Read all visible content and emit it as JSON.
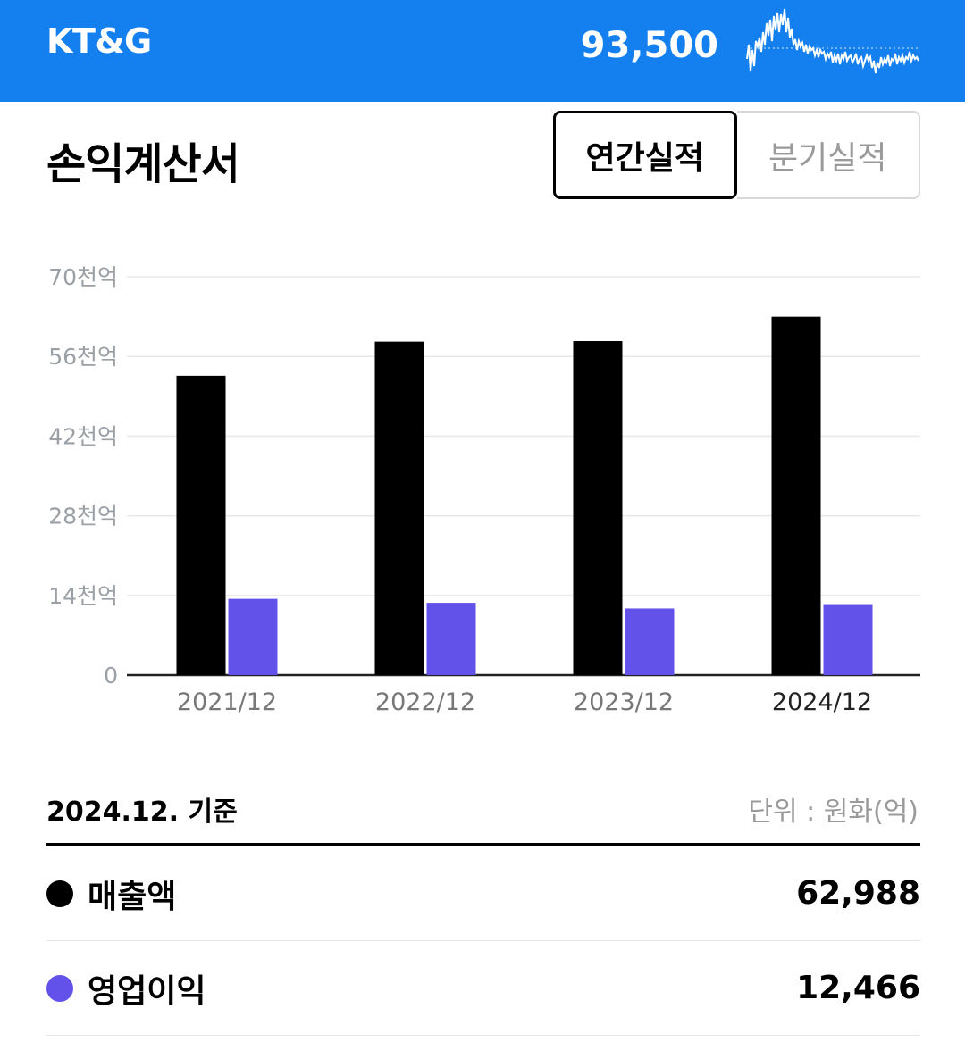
{
  "header": {
    "title": "KT&G",
    "price": "93,500",
    "sparkline_icon": "price-sparkline-icon"
  },
  "section": {
    "title": "손익계산서"
  },
  "toggle": {
    "annual": "연간실적",
    "quarterly": "분기실적",
    "selected": "annual"
  },
  "chart_data": {
    "type": "bar",
    "categories": [
      "2021/12",
      "2022/12",
      "2023/12",
      "2024/12"
    ],
    "selected_category": "2024/12",
    "series": [
      {
        "name": "매출액",
        "color": "#000000",
        "values": [
          52600,
          58600,
          58700,
          62988
        ]
      },
      {
        "name": "영업이익",
        "color": "#6352ea",
        "values": [
          13400,
          12700,
          11700,
          12466
        ]
      }
    ],
    "ylim": [
      0,
      70000
    ],
    "yticks": [
      {
        "value": 0,
        "label": "0"
      },
      {
        "value": 14000,
        "label": "14천억"
      },
      {
        "value": 28000,
        "label": "28천억"
      },
      {
        "value": 42000,
        "label": "42천억"
      },
      {
        "value": 56000,
        "label": "56천억"
      },
      {
        "value": 70000,
        "label": "70천억"
      }
    ],
    "grid": true
  },
  "summary": {
    "basis": "2024.12. 기준",
    "unit": "단위 : 원화(억)",
    "rows": [
      {
        "label": "매출액",
        "value": "62,988",
        "color": "#000000"
      },
      {
        "label": "영업이익",
        "value": "12,466",
        "color": "#6352ea"
      }
    ]
  }
}
